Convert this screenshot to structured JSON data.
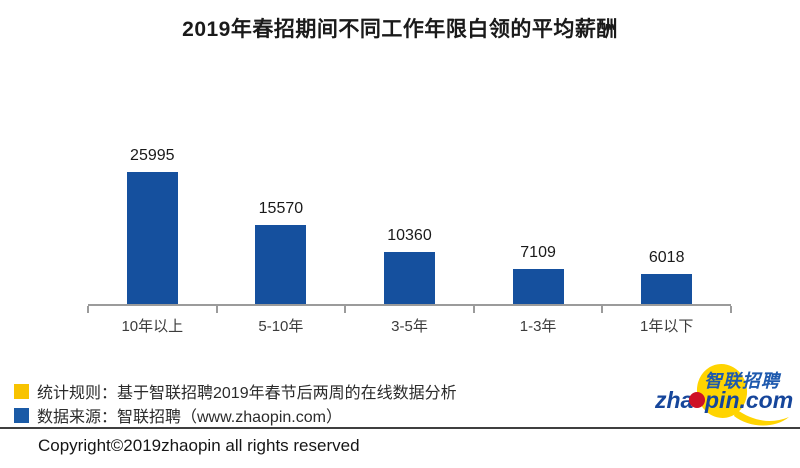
{
  "title": "2019年春招期间不同工作年限白领的平均薪酬",
  "chart_data": {
    "type": "bar",
    "title": "2019年春招期间不同工作年限白领的平均薪酬",
    "categories": [
      "10年以上",
      "5-10年",
      "3-5年",
      "1-3年",
      "1年以下"
    ],
    "values": [
      25995,
      15570,
      10360,
      7109,
      6018
    ],
    "value_labels": [
      "25995",
      "15570",
      "10360",
      "7109",
      "6018"
    ],
    "xlabel": "",
    "ylabel": "",
    "ylim": [
      0,
      26000
    ],
    "grid": false,
    "legend_position": "none",
    "bar_color": "#15509E",
    "axis_color": "#9b9b9b"
  },
  "legend": {
    "items": [
      {
        "color": "#F8C300",
        "label": "统计规则：基于智联招聘2019年春节后两周的在线数据分析"
      },
      {
        "color": "#1A5AA6",
        "label": "数据来源：智联招聘（www.zhaopin.com）"
      }
    ]
  },
  "logo": {
    "cn": "智联招聘",
    "en_prefix": "zha",
    "en_suffix": "pin.com",
    "yellow": "#FFD400",
    "red": "#CE1126",
    "blue": "#16469B"
  },
  "footer": {
    "copyright": "Copyright©2019zhaopin all rights reserved"
  }
}
